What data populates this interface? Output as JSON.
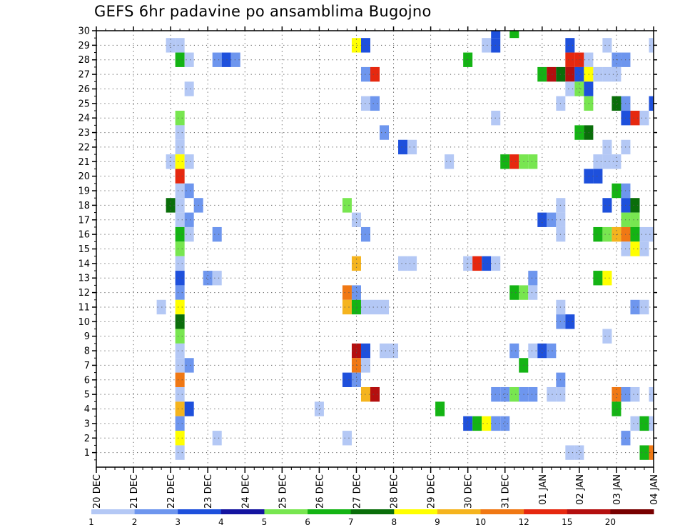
{
  "title": "GEFS 6hr padavine po ansamblima Bugojno",
  "chart_data": {
    "type": "heatmap",
    "title": "GEFS 6hr padavine po ansamblima Bugojno",
    "y_ticks": [
      1,
      2,
      3,
      4,
      5,
      6,
      7,
      8,
      9,
      10,
      11,
      12,
      13,
      14,
      15,
      16,
      17,
      18,
      19,
      20,
      21,
      22,
      23,
      24,
      25,
      26,
      27,
      28,
      29,
      30
    ],
    "ylim": [
      0,
      30
    ],
    "x_ticks": [
      "20 DEC",
      "21 DEC",
      "22 DEC",
      "23 DEC",
      "24 DEC",
      "25 DEC",
      "26 DEC",
      "27 DEC",
      "28 DEC",
      "29 DEC",
      "30 DEC",
      "31 DEC",
      "01 JAN",
      "02 JAN",
      "03 JAN",
      "04 JAN"
    ],
    "x_range_steps": [
      0,
      60
    ],
    "grid": true,
    "colorbar": {
      "labels": [
        "1",
        "2",
        "3",
        "4",
        "5",
        "6",
        "7",
        "8",
        "9",
        "10",
        "12",
        "15",
        "20"
      ],
      "colors": [
        "#b4c8f5",
        "#6e96ee",
        "#1e50dc",
        "#1414a0",
        "#78e650",
        "#14b414",
        "#0a6e0a",
        "#ffff00",
        "#f5b41e",
        "#f07814",
        "#e6280f",
        "#b40f0f",
        "#780000"
      ]
    },
    "cells": [
      [
        45,
        30,
        5
      ],
      [
        43,
        30,
        2
      ],
      [
        8,
        29,
        0
      ],
      [
        9,
        29,
        0
      ],
      [
        28,
        29,
        7
      ],
      [
        29,
        29,
        2
      ],
      [
        42,
        29,
        0
      ],
      [
        43,
        29,
        2
      ],
      [
        51,
        29,
        2
      ],
      [
        55,
        29,
        0
      ],
      [
        60,
        29,
        0
      ],
      [
        9,
        28,
        5
      ],
      [
        10,
        28,
        0
      ],
      [
        13,
        28,
        1
      ],
      [
        14,
        28,
        2
      ],
      [
        15,
        28,
        1
      ],
      [
        40,
        28,
        5
      ],
      [
        51,
        28,
        10
      ],
      [
        52,
        28,
        10
      ],
      [
        53,
        28,
        0
      ],
      [
        56,
        28,
        1
      ],
      [
        57,
        28,
        1
      ],
      [
        29,
        27,
        1
      ],
      [
        30,
        27,
        10
      ],
      [
        48,
        27,
        5
      ],
      [
        49,
        27,
        11
      ],
      [
        50,
        27,
        6
      ],
      [
        51,
        27,
        11
      ],
      [
        52,
        27,
        2
      ],
      [
        53,
        27,
        7
      ],
      [
        54,
        27,
        0
      ],
      [
        55,
        27,
        0
      ],
      [
        56,
        27,
        0
      ],
      [
        10,
        26,
        0
      ],
      [
        51,
        26,
        0
      ],
      [
        52,
        26,
        4
      ],
      [
        53,
        26,
        2
      ],
      [
        29,
        25,
        0
      ],
      [
        30,
        25,
        1
      ],
      [
        50,
        25,
        0
      ],
      [
        53,
        25,
        4
      ],
      [
        56,
        25,
        6
      ],
      [
        57,
        25,
        1
      ],
      [
        60,
        25,
        2
      ],
      [
        9,
        24,
        4
      ],
      [
        43,
        24,
        0
      ],
      [
        57,
        24,
        2
      ],
      [
        58,
        24,
        10
      ],
      [
        59,
        24,
        0
      ],
      [
        9,
        23,
        0
      ],
      [
        31,
        23,
        1
      ],
      [
        52,
        23,
        5
      ],
      [
        53,
        23,
        6
      ],
      [
        9,
        22,
        0
      ],
      [
        33,
        22,
        2
      ],
      [
        34,
        22,
        0
      ],
      [
        55,
        22,
        0
      ],
      [
        57,
        22,
        0
      ],
      [
        8,
        21,
        0
      ],
      [
        9,
        21,
        7
      ],
      [
        10,
        21,
        0
      ],
      [
        38,
        21,
        0
      ],
      [
        44,
        21,
        5
      ],
      [
        45,
        21,
        10
      ],
      [
        46,
        21,
        4
      ],
      [
        47,
        21,
        4
      ],
      [
        54,
        21,
        0
      ],
      [
        55,
        21,
        0
      ],
      [
        56,
        21,
        0
      ],
      [
        9,
        20,
        10
      ],
      [
        53,
        20,
        2
      ],
      [
        54,
        20,
        2
      ],
      [
        9,
        19,
        0
      ],
      [
        10,
        19,
        1
      ],
      [
        56,
        19,
        5
      ],
      [
        57,
        19,
        1
      ],
      [
        8,
        18,
        6
      ],
      [
        9,
        18,
        0
      ],
      [
        11,
        18,
        1
      ],
      [
        27,
        18,
        4
      ],
      [
        50,
        18,
        0
      ],
      [
        55,
        18,
        2
      ],
      [
        57,
        18,
        2
      ],
      [
        58,
        18,
        6
      ],
      [
        9,
        17,
        0
      ],
      [
        10,
        17,
        1
      ],
      [
        28,
        17,
        0
      ],
      [
        48,
        17,
        2
      ],
      [
        49,
        17,
        1
      ],
      [
        50,
        17,
        0
      ],
      [
        57,
        17,
        4
      ],
      [
        58,
        17,
        4
      ],
      [
        9,
        16,
        5
      ],
      [
        10,
        16,
        0
      ],
      [
        13,
        16,
        1
      ],
      [
        29,
        16,
        1
      ],
      [
        50,
        16,
        0
      ],
      [
        54,
        16,
        5
      ],
      [
        55,
        16,
        4
      ],
      [
        56,
        16,
        8
      ],
      [
        57,
        16,
        9
      ],
      [
        58,
        16,
        5
      ],
      [
        59,
        16,
        0
      ],
      [
        60,
        16,
        0
      ],
      [
        9,
        15,
        4
      ],
      [
        57,
        15,
        0
      ],
      [
        58,
        15,
        7
      ],
      [
        59,
        15,
        0
      ],
      [
        9,
        14,
        0
      ],
      [
        28,
        14,
        8
      ],
      [
        33,
        14,
        0
      ],
      [
        34,
        14,
        0
      ],
      [
        40,
        14,
        0
      ],
      [
        41,
        14,
        10
      ],
      [
        42,
        14,
        2
      ],
      [
        43,
        14,
        0
      ],
      [
        9,
        13,
        2
      ],
      [
        12,
        13,
        1
      ],
      [
        13,
        13,
        0
      ],
      [
        47,
        13,
        1
      ],
      [
        54,
        13,
        5
      ],
      [
        55,
        13,
        7
      ],
      [
        9,
        12,
        1
      ],
      [
        27,
        12,
        9
      ],
      [
        28,
        12,
        1
      ],
      [
        45,
        12,
        5
      ],
      [
        46,
        12,
        4
      ],
      [
        47,
        12,
        0
      ],
      [
        7,
        11,
        0
      ],
      [
        9,
        11,
        7
      ],
      [
        27,
        11,
        8
      ],
      [
        28,
        11,
        5
      ],
      [
        29,
        11,
        0
      ],
      [
        30,
        11,
        0
      ],
      [
        31,
        11,
        0
      ],
      [
        50,
        11,
        0
      ],
      [
        58,
        11,
        1
      ],
      [
        59,
        11,
        0
      ],
      [
        9,
        10,
        6
      ],
      [
        50,
        10,
        1
      ],
      [
        51,
        10,
        2
      ],
      [
        9,
        9,
        4
      ],
      [
        55,
        9,
        0
      ],
      [
        9,
        8,
        0
      ],
      [
        28,
        8,
        11
      ],
      [
        29,
        8,
        2
      ],
      [
        31,
        8,
        0
      ],
      [
        32,
        8,
        0
      ],
      [
        45,
        8,
        1
      ],
      [
        47,
        8,
        0
      ],
      [
        48,
        8,
        2
      ],
      [
        49,
        8,
        1
      ],
      [
        9,
        7,
        0
      ],
      [
        10,
        7,
        1
      ],
      [
        28,
        7,
        9
      ],
      [
        29,
        7,
        0
      ],
      [
        46,
        7,
        5
      ],
      [
        9,
        6,
        9
      ],
      [
        27,
        6,
        2
      ],
      [
        28,
        6,
        1
      ],
      [
        50,
        6,
        1
      ],
      [
        9,
        5,
        0
      ],
      [
        29,
        5,
        8
      ],
      [
        30,
        5,
        11
      ],
      [
        43,
        5,
        1
      ],
      [
        44,
        5,
        1
      ],
      [
        45,
        5,
        4
      ],
      [
        46,
        5,
        1
      ],
      [
        47,
        5,
        1
      ],
      [
        49,
        5,
        0
      ],
      [
        50,
        5,
        0
      ],
      [
        56,
        5,
        9
      ],
      [
        57,
        5,
        1
      ],
      [
        58,
        5,
        0
      ],
      [
        60,
        5,
        0
      ],
      [
        9,
        4,
        8
      ],
      [
        10,
        4,
        2
      ],
      [
        24,
        4,
        0
      ],
      [
        37,
        4,
        5
      ],
      [
        56,
        4,
        5
      ],
      [
        9,
        3,
        1
      ],
      [
        40,
        3,
        2
      ],
      [
        41,
        3,
        5
      ],
      [
        42,
        3,
        7
      ],
      [
        43,
        3,
        1
      ],
      [
        44,
        3,
        1
      ],
      [
        58,
        3,
        0
      ],
      [
        59,
        3,
        5
      ],
      [
        60,
        3,
        0
      ],
      [
        9,
        2,
        7
      ],
      [
        13,
        2,
        0
      ],
      [
        27,
        2,
        0
      ],
      [
        57,
        2,
        1
      ],
      [
        9,
        1,
        0
      ],
      [
        51,
        1,
        0
      ],
      [
        52,
        1,
        0
      ],
      [
        59,
        1,
        5
      ],
      [
        60,
        1,
        9
      ]
    ]
  }
}
